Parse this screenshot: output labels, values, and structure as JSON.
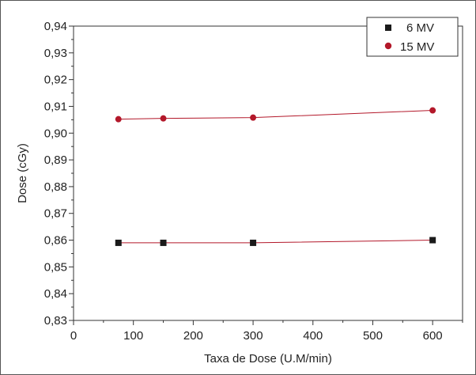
{
  "chart_data": {
    "type": "scatter",
    "title": "",
    "xlabel": "Taxa de Dose (U.M/min)",
    "ylabel": "Dose (cGy)",
    "xlim": [
      0,
      650
    ],
    "ylim": [
      0.83,
      0.94
    ],
    "x_ticks": [
      "0",
      "100",
      "200",
      "300",
      "400",
      "500",
      "600"
    ],
    "y_ticks": [
      "0,83",
      "0,84",
      "0,85",
      "0,86",
      "0,87",
      "0,88",
      "0,89",
      "0,90",
      "0,91",
      "0,92",
      "0,93",
      "0,94"
    ],
    "legend_position": "top-right",
    "series": [
      {
        "name": "6 MV",
        "marker": "square",
        "color": "#1a1a1a",
        "line_color": "#b3182a",
        "x": [
          75,
          150,
          300,
          600
        ],
        "y": [
          0.859,
          0.859,
          0.859,
          0.86
        ]
      },
      {
        "name": "15 MV",
        "marker": "circle",
        "color": "#b3182a",
        "line_color": "#b3182a",
        "x": [
          75,
          150,
          300,
          600
        ],
        "y": [
          0.9052,
          0.9055,
          0.9058,
          0.9085
        ]
      }
    ]
  }
}
